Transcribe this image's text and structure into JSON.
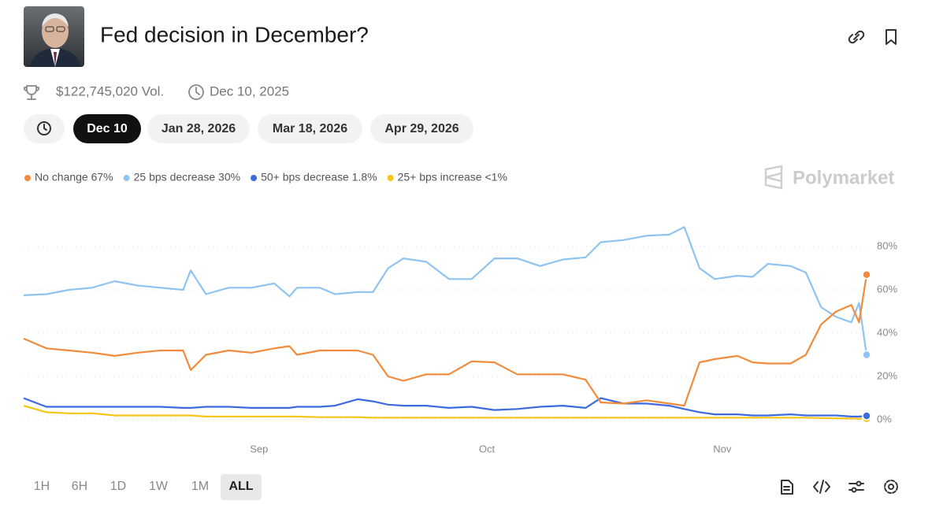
{
  "header": {
    "title": "Fed decision in December?",
    "volume": "$122,745,020 Vol.",
    "date": "Dec 10, 2025"
  },
  "date_tabs": [
    "Dec 10",
    "Jan 28, 2026",
    "Mar 18, 2026",
    "Apr 29, 2026"
  ],
  "watermark": "Polymarket",
  "range_buttons": [
    "1H",
    "6H",
    "1D",
    "1W",
    "1M",
    "ALL"
  ],
  "chart_data": {
    "type": "line",
    "x": [
      0,
      3,
      6,
      9,
      12,
      15,
      18,
      21,
      22,
      24,
      27,
      30,
      33,
      35,
      36,
      39,
      41,
      44,
      46,
      48,
      50,
      53,
      56,
      59,
      62,
      65,
      68,
      71,
      74,
      76,
      79,
      82,
      85,
      87,
      89,
      91,
      94,
      96,
      98,
      101,
      103,
      105,
      107,
      109,
      110,
      111
    ],
    "xlim": [
      0,
      111
    ],
    "xticks": [
      {
        "value": 31,
        "label": "Sep"
      },
      {
        "value": 61,
        "label": "Oct"
      },
      {
        "value": 92,
        "label": "Nov"
      }
    ],
    "ylim": [
      0,
      100
    ],
    "yticks": [
      {
        "value": 0,
        "label": "0%"
      },
      {
        "value": 20,
        "label": "20%"
      },
      {
        "value": 40,
        "label": "40%"
      },
      {
        "value": 60,
        "label": "60%"
      },
      {
        "value": 80,
        "label": "80%"
      }
    ],
    "grid": true,
    "series": [
      {
        "name": "No change 67%",
        "color": "#f28b3c",
        "values": [
          37.5,
          33,
          32,
          31,
          29.5,
          31,
          32,
          32,
          23,
          30,
          32,
          31,
          33,
          34,
          30,
          32,
          32,
          32,
          30,
          20,
          18,
          21,
          21,
          27,
          26.5,
          21,
          21,
          21,
          18.5,
          8,
          7.5,
          9,
          7.5,
          6.5,
          26.5,
          28,
          29.5,
          26.5,
          26,
          26,
          30,
          44,
          50,
          53,
          45,
          67
        ]
      },
      {
        "name": "25 bps decrease 30%",
        "color": "#8ec3f2",
        "values": [
          57.5,
          58,
          60,
          61,
          64,
          62,
          61,
          60,
          69,
          58,
          61,
          61,
          63,
          57,
          61,
          61,
          58,
          59,
          59,
          70,
          74.5,
          73,
          65,
          65,
          74.5,
          74.5,
          71,
          74,
          75,
          82,
          83,
          85,
          85.5,
          89,
          70,
          65,
          66.5,
          66,
          72,
          71,
          68,
          52,
          47.5,
          45,
          54,
          30
        ]
      },
      {
        "name": "50+ bps decrease 1.8%",
        "color": "#3c6be0",
        "values": [
          10,
          6,
          6,
          6,
          6,
          6,
          6,
          5.5,
          5.5,
          6,
          6,
          5.5,
          5.5,
          5.5,
          6,
          6,
          6.5,
          9.5,
          8.5,
          7,
          6.5,
          6.5,
          5.5,
          6,
          4.5,
          5,
          6,
          6.5,
          5.5,
          10,
          7.5,
          7.5,
          6.5,
          5,
          3.5,
          2.5,
          2.5,
          2,
          2,
          2.5,
          2,
          2,
          2,
          1.5,
          1.5,
          1.8
        ]
      },
      {
        "name": "25+ bps increase <1%",
        "color": "#f5c518",
        "values": [
          6.5,
          3.5,
          3,
          3,
          2,
          2,
          2,
          2,
          2,
          1.5,
          1.5,
          1.5,
          1.5,
          1.5,
          1.5,
          1.2,
          1.2,
          1.2,
          1,
          1,
          1,
          1,
          1,
          1,
          1,
          1,
          1,
          1,
          1,
          1,
          1,
          1,
          1,
          1,
          1,
          1,
          1,
          1,
          1,
          1,
          1,
          0.8,
          0.7,
          0.6,
          0.5,
          0.5
        ]
      }
    ]
  }
}
